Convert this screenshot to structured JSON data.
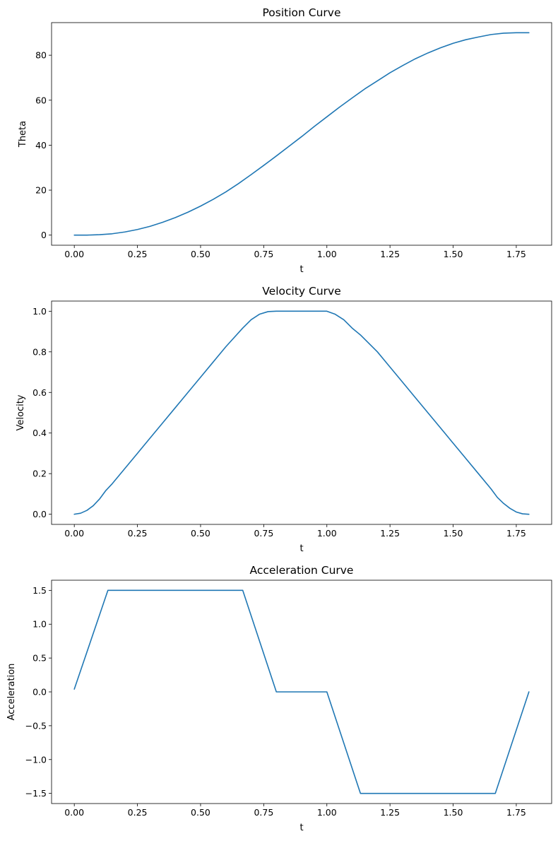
{
  "chart_data": [
    {
      "type": "line",
      "title": "Position Curve",
      "xlabel": "t",
      "ylabel": "Theta",
      "xlim": [
        -0.09,
        1.89
      ],
      "ylim": [
        -4.5,
        94.5
      ],
      "xticks": [
        0.0,
        0.25,
        0.5,
        0.75,
        1.0,
        1.25,
        1.5,
        1.75
      ],
      "xtick_labels": [
        "0.00",
        "0.25",
        "0.50",
        "0.75",
        "1.00",
        "1.25",
        "1.50",
        "1.75"
      ],
      "yticks": [
        0,
        20,
        40,
        60,
        80
      ],
      "ytick_labels": [
        "0",
        "20",
        "40",
        "60",
        "80"
      ],
      "grid": false,
      "series": [
        {
          "color": "#1f77b4",
          "x": [
            0.0,
            0.05,
            0.1,
            0.15,
            0.2,
            0.25,
            0.3,
            0.35,
            0.4,
            0.45,
            0.5,
            0.55,
            0.6,
            0.65,
            0.7,
            0.75,
            0.8,
            0.85,
            0.9,
            0.95,
            1.0,
            1.05,
            1.1,
            1.15,
            1.2,
            1.25,
            1.3,
            1.35,
            1.4,
            1.45,
            1.5,
            1.55,
            1.6,
            1.65,
            1.7,
            1.75,
            1.8
          ],
          "y": [
            0.0,
            0.0,
            0.2,
            0.6,
            1.4,
            2.5,
            3.9,
            5.7,
            7.8,
            10.2,
            12.9,
            15.9,
            19.2,
            22.9,
            26.9,
            31.0,
            35.2,
            39.5,
            43.8,
            48.3,
            52.6,
            56.9,
            61.0,
            65.0,
            68.6,
            72.2,
            75.4,
            78.4,
            81.0,
            83.3,
            85.3,
            86.9,
            88.1,
            89.2,
            89.8,
            90.0,
            90.0
          ]
        }
      ]
    },
    {
      "type": "line",
      "title": "Velocity Curve",
      "xlabel": "t",
      "ylabel": "Velocity",
      "xlim": [
        -0.09,
        1.89
      ],
      "ylim": [
        -0.05,
        1.05
      ],
      "xticks": [
        0.0,
        0.25,
        0.5,
        0.75,
        1.0,
        1.25,
        1.5,
        1.75
      ],
      "xtick_labels": [
        "0.00",
        "0.25",
        "0.50",
        "0.75",
        "1.00",
        "1.25",
        "1.50",
        "1.75"
      ],
      "yticks": [
        0.0,
        0.2,
        0.4,
        0.6,
        0.8,
        1.0
      ],
      "ytick_labels": [
        "0.0",
        "0.2",
        "0.4",
        "0.6",
        "0.8",
        "1.0"
      ],
      "grid": false,
      "series": [
        {
          "color": "#1f77b4",
          "x": [
            0.0,
            0.025,
            0.05,
            0.075,
            0.1,
            0.125,
            0.15,
            0.2,
            0.25,
            0.3,
            0.35,
            0.4,
            0.45,
            0.5,
            0.55,
            0.6,
            0.667,
            0.7,
            0.733,
            0.767,
            0.8,
            0.85,
            0.9,
            0.95,
            1.0,
            1.033,
            1.067,
            1.1,
            1.133,
            1.2,
            1.25,
            1.3,
            1.35,
            1.4,
            1.45,
            1.5,
            1.55,
            1.6,
            1.65,
            1.675,
            1.7,
            1.725,
            1.75,
            1.775,
            1.8
          ],
          "y": [
            0.0,
            0.005,
            0.019,
            0.042,
            0.075,
            0.117,
            0.15,
            0.225,
            0.3,
            0.375,
            0.45,
            0.525,
            0.6,
            0.675,
            0.75,
            0.825,
            0.917,
            0.958,
            0.985,
            0.998,
            1.0,
            1.0,
            1.0,
            1.0,
            1.0,
            0.985,
            0.958,
            0.917,
            0.883,
            0.8,
            0.725,
            0.65,
            0.575,
            0.5,
            0.425,
            0.35,
            0.275,
            0.2,
            0.125,
            0.083,
            0.053,
            0.029,
            0.011,
            0.002,
            0.0
          ]
        }
      ]
    },
    {
      "type": "line",
      "title": "Acceleration Curve",
      "xlabel": "t",
      "ylabel": "Acceleration",
      "xlim": [
        -0.09,
        1.89
      ],
      "ylim": [
        -1.65,
        1.65
      ],
      "xticks": [
        0.0,
        0.25,
        0.5,
        0.75,
        1.0,
        1.25,
        1.5,
        1.75
      ],
      "xtick_labels": [
        "0.00",
        "0.25",
        "0.50",
        "0.75",
        "1.00",
        "1.25",
        "1.50",
        "1.75"
      ],
      "yticks": [
        -1.5,
        -1.0,
        -0.5,
        0.0,
        0.5,
        1.0,
        1.5
      ],
      "ytick_labels": [
        "−1.5",
        "−1.0",
        "−0.5",
        "0.0",
        "0.5",
        "1.0",
        "1.5"
      ],
      "grid": false,
      "series": [
        {
          "color": "#1f77b4",
          "x": [
            0.0,
            0.133,
            0.667,
            0.8,
            1.0,
            1.133,
            1.667,
            1.8
          ],
          "y": [
            0.04,
            1.5,
            1.5,
            0.0,
            0.0,
            -1.5,
            -1.5,
            0.0
          ]
        }
      ]
    }
  ]
}
